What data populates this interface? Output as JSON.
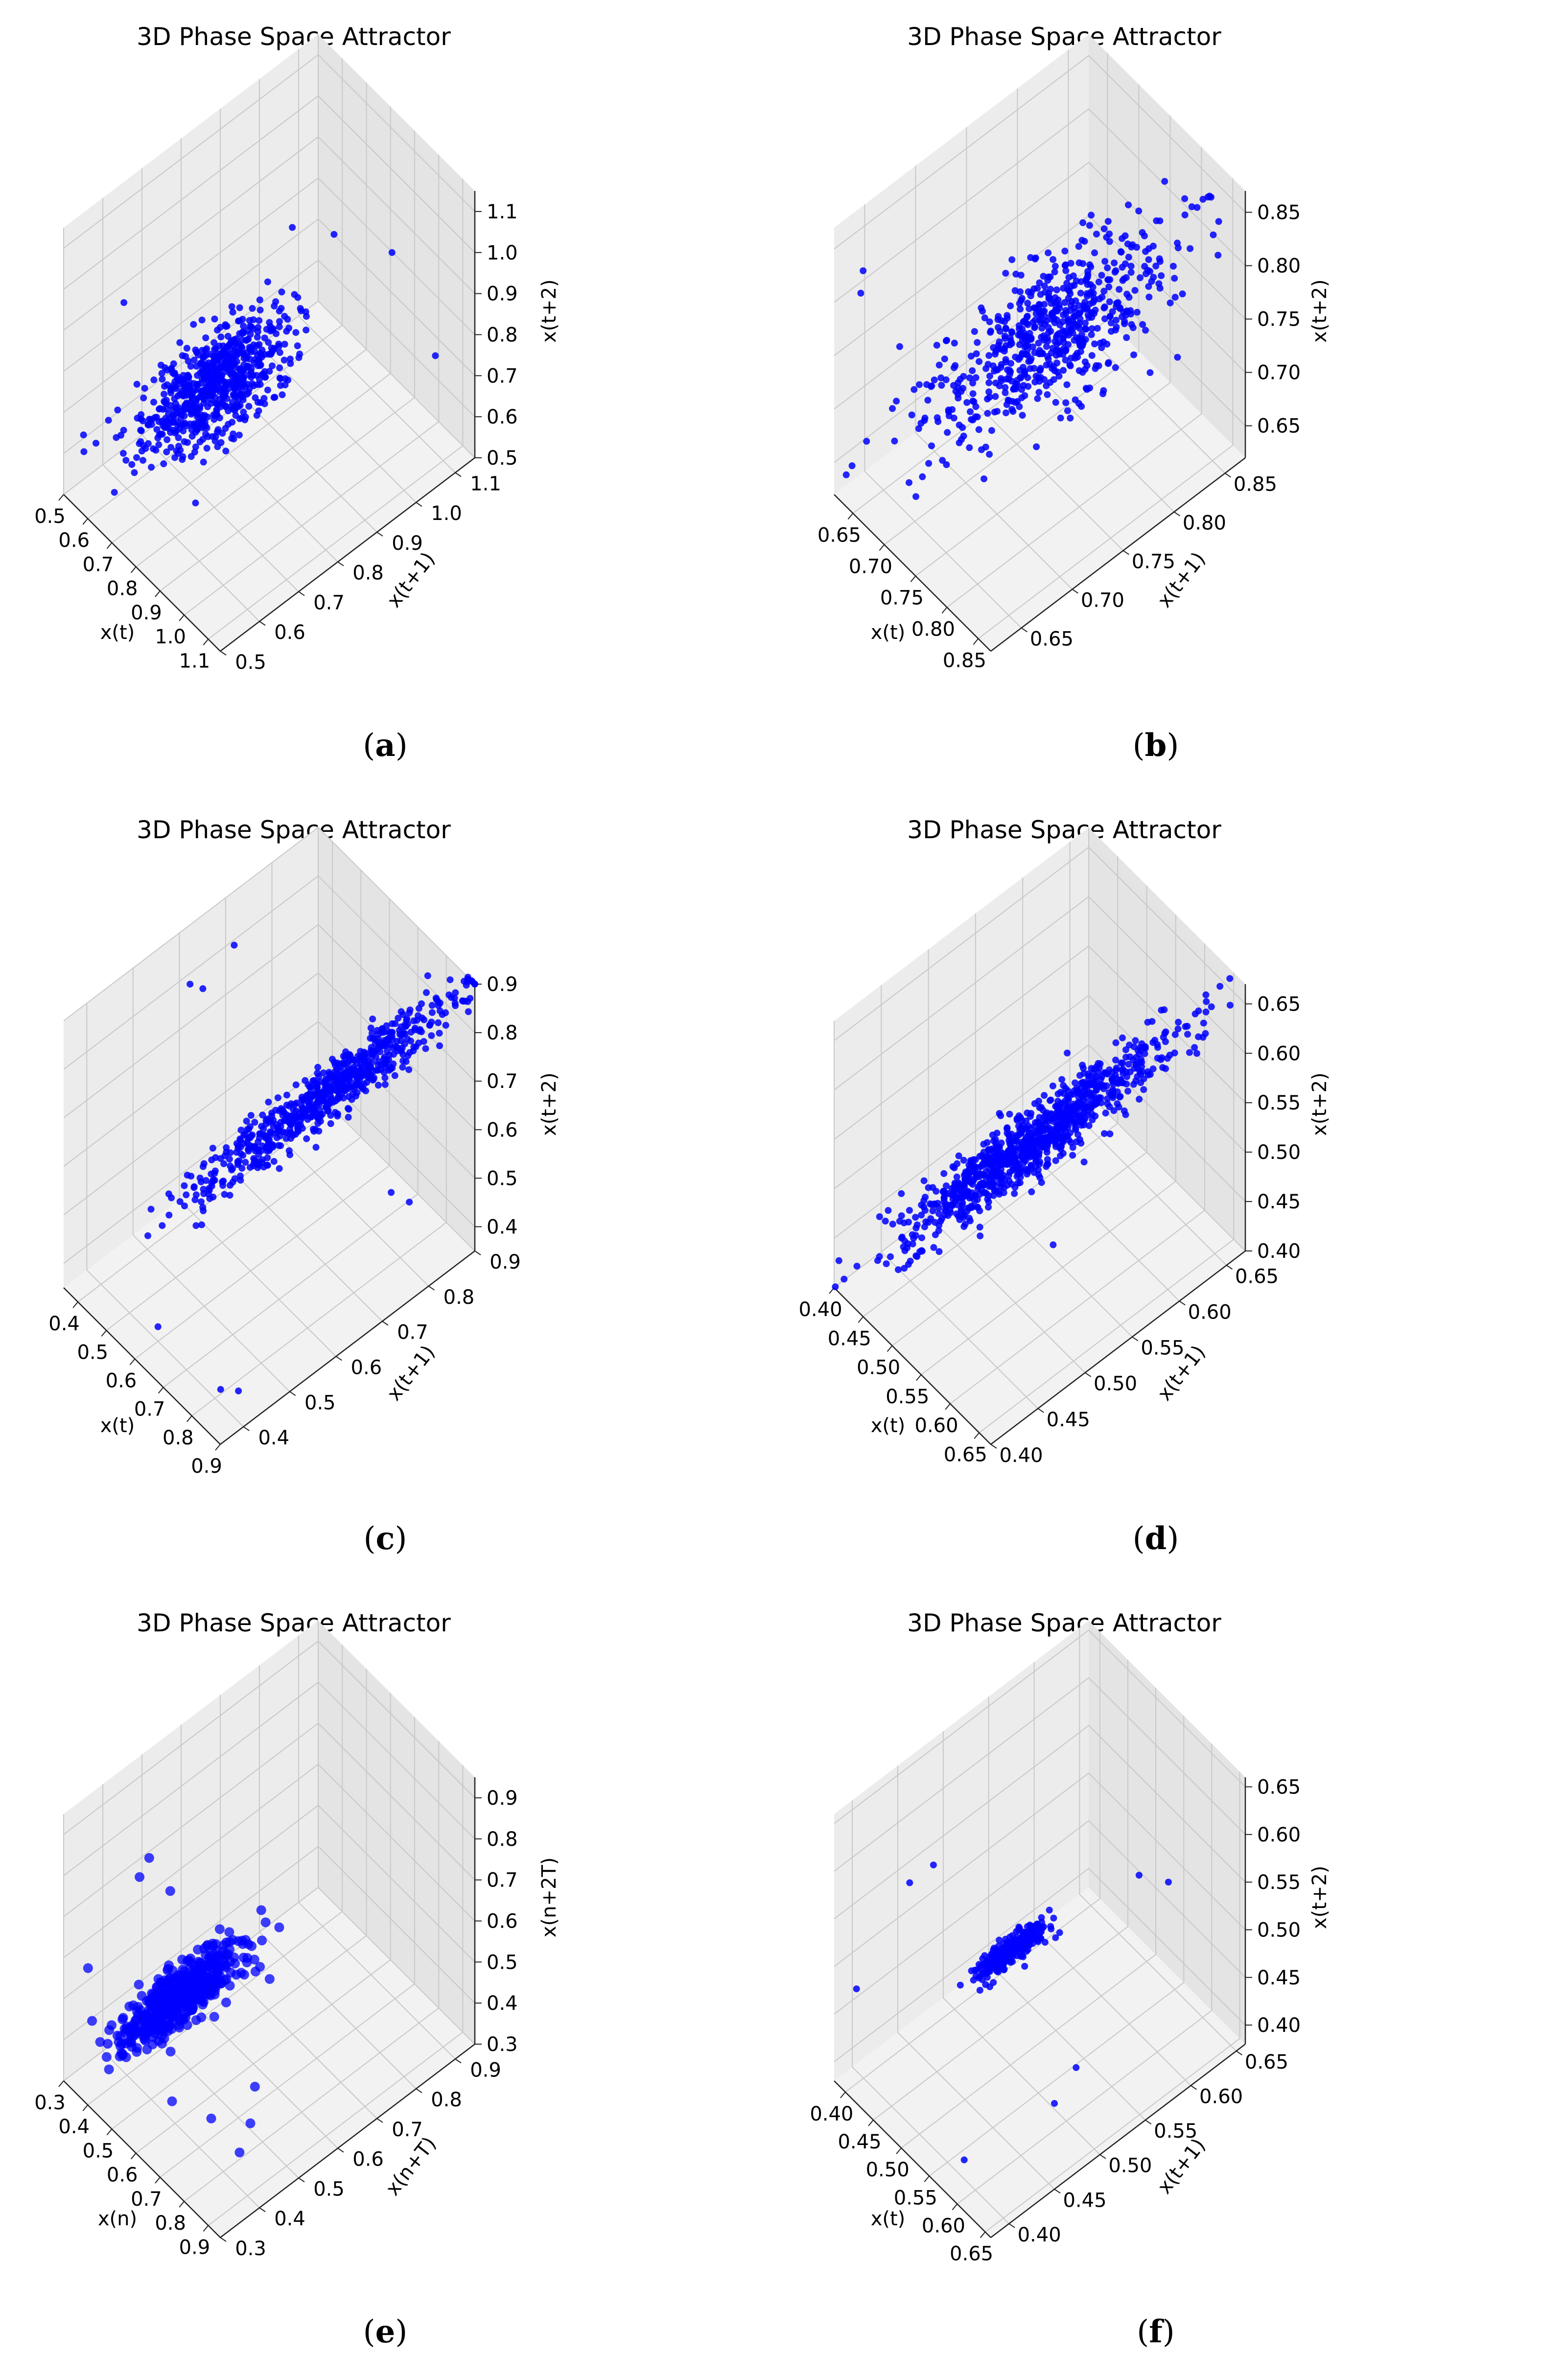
{
  "figure": {
    "caption_labels": [
      "a",
      "b",
      "c",
      "d",
      "e",
      "f"
    ]
  },
  "colors": {
    "points": "#0000ff",
    "pane_left": "#ececec",
    "pane_right": "#e4e4e4",
    "pane_floor": "#f2f2f2",
    "grid": "#c8c8c8"
  },
  "chart_data": [
    {
      "id": "a",
      "type": "scatter3d",
      "title": "3D Phase Space Attractor",
      "xlabel": "x(t)",
      "ylabel": "x(t+1)",
      "zlabel": "x(t+2)",
      "xlim": [
        0.5,
        1.15
      ],
      "ylim": [
        0.5,
        1.15
      ],
      "zlim": [
        0.5,
        1.15
      ],
      "xticks": [
        "0.5",
        "0.6",
        "0.7",
        "0.8",
        "0.9",
        "1.0",
        "1.1"
      ],
      "yticks": [
        "0.5",
        "0.6",
        "0.7",
        "0.8",
        "0.9",
        "1.0",
        "1.1"
      ],
      "zticks": [
        "0.5",
        "0.6",
        "0.7",
        "0.8",
        "0.9",
        "1.0",
        "1.1"
      ],
      "n_points": 700,
      "center": [
        0.74,
        0.74,
        0.74
      ],
      "spread": 0.07,
      "correlation": 0.75,
      "outliers": [
        [
          1.1,
          1.08,
          0.77
        ],
        [
          1.05,
          1.0,
          1.05
        ],
        [
          0.88,
          0.85,
          1.12
        ],
        [
          0.62,
          0.58,
          0.98
        ],
        [
          0.55,
          0.52,
          0.66
        ]
      ]
    },
    {
      "id": "b",
      "type": "scatter3d",
      "title": "3D Phase Space Attractor",
      "xlabel": "x(t)",
      "ylabel": "x(t+1)",
      "zlabel": "x(t+2)",
      "xlim": [
        0.62,
        0.87
      ],
      "ylim": [
        0.62,
        0.87
      ],
      "zlim": [
        0.62,
        0.87
      ],
      "xticks": [
        "0.65",
        "0.70",
        "0.75",
        "0.80",
        "0.85"
      ],
      "yticks": [
        "0.65",
        "0.70",
        "0.75",
        "0.80",
        "0.85"
      ],
      "zticks": [
        "0.65",
        "0.70",
        "0.75",
        "0.80",
        "0.85"
      ],
      "n_points": 650,
      "center": [
        0.75,
        0.75,
        0.75
      ],
      "spread": 0.04,
      "correlation": 0.8,
      "outliers": [
        [
          0.86,
          0.85,
          0.85
        ],
        [
          0.65,
          0.63,
          0.84
        ],
        [
          0.63,
          0.64,
          0.8
        ]
      ]
    },
    {
      "id": "c",
      "type": "scatter3d",
      "title": "3D Phase Space Attractor",
      "xlabel": "x(t)",
      "ylabel": "x(t+1)",
      "zlabel": "x(t+2)",
      "xlim": [
        0.35,
        0.9
      ],
      "ylim": [
        0.35,
        0.9
      ],
      "zlim": [
        0.35,
        0.9
      ],
      "xticks": [
        "0.4",
        "0.5",
        "0.6",
        "0.7",
        "0.8",
        "0.9"
      ],
      "yticks": [
        "0.4",
        "0.5",
        "0.6",
        "0.7",
        "0.8",
        "0.9"
      ],
      "zticks": [
        "0.4",
        "0.5",
        "0.6",
        "0.7",
        "0.8",
        "0.9"
      ],
      "n_points": 700,
      "center": [
        0.7,
        0.7,
        0.7
      ],
      "spread": 0.09,
      "correlation": 0.97,
      "outliers": [
        [
          0.82,
          0.4,
          0.38
        ],
        [
          0.85,
          0.42,
          0.38
        ],
        [
          0.6,
          0.4,
          0.38
        ],
        [
          0.4,
          0.62,
          0.8
        ],
        [
          0.42,
          0.58,
          0.85
        ],
        [
          0.38,
          0.7,
          0.82
        ],
        [
          0.8,
          0.82,
          0.45
        ],
        [
          0.85,
          0.75,
          0.55
        ]
      ]
    },
    {
      "id": "d",
      "type": "scatter3d",
      "title": "3D Phase Space Attractor",
      "xlabel": "x(t)",
      "ylabel": "x(t+1)",
      "zlabel": "x(t+2)",
      "xlim": [
        0.4,
        0.67
      ],
      "ylim": [
        0.4,
        0.67
      ],
      "zlim": [
        0.4,
        0.67
      ],
      "xticks": [
        "0.40",
        "0.45",
        "0.50",
        "0.55",
        "0.60",
        "0.65"
      ],
      "yticks": [
        "0.40",
        "0.45",
        "0.50",
        "0.55",
        "0.60",
        "0.65"
      ],
      "zticks": [
        "0.40",
        "0.45",
        "0.50",
        "0.55",
        "0.60",
        "0.65"
      ],
      "n_points": 950,
      "center": [
        0.53,
        0.53,
        0.53
      ],
      "spread": 0.045,
      "correlation": 0.96,
      "outliers": [
        [
          0.66,
          0.66,
          0.65
        ],
        [
          0.65,
          0.64,
          0.63
        ],
        [
          0.62,
          0.6,
          0.6
        ],
        [
          0.45,
          0.45,
          0.42
        ],
        [
          0.55,
          0.54,
          0.43
        ]
      ]
    },
    {
      "id": "e",
      "type": "scatter3d",
      "title": "3D Phase Space Attractor",
      "xlabel": "x(n)",
      "ylabel": "x(n+T)",
      "zlabel": "x(n+2T)",
      "xlim": [
        0.3,
        0.95
      ],
      "ylim": [
        0.3,
        0.95
      ],
      "zlim": [
        0.3,
        0.95
      ],
      "xticks": [
        "0.3",
        "0.4",
        "0.5",
        "0.6",
        "0.7",
        "0.8",
        "0.9"
      ],
      "yticks": [
        "0.3",
        "0.4",
        "0.5",
        "0.6",
        "0.7",
        "0.8",
        "0.9"
      ],
      "zticks": [
        "0.3",
        "0.4",
        "0.5",
        "0.6",
        "0.7",
        "0.8",
        "0.9"
      ],
      "n_points": 500,
      "center": [
        0.48,
        0.48,
        0.48
      ],
      "spread": 0.05,
      "correlation": 0.85,
      "outliers": [
        [
          0.46,
          0.42,
          0.85
        ],
        [
          0.42,
          0.42,
          0.78
        ],
        [
          0.45,
          0.48,
          0.72
        ],
        [
          0.6,
          0.62,
          0.66
        ],
        [
          0.7,
          0.58,
          0.58
        ],
        [
          0.85,
          0.45,
          0.5
        ],
        [
          0.88,
          0.42,
          0.45
        ],
        [
          0.9,
          0.38,
          0.42
        ],
        [
          0.75,
          0.4,
          0.4
        ],
        [
          0.62,
          0.38,
          0.38
        ],
        [
          0.32,
          0.35,
          0.55
        ],
        [
          0.5,
          0.45,
          0.38
        ]
      ]
    },
    {
      "id": "f",
      "type": "scatter3d",
      "title": "3D Phase Space Attractor",
      "xlabel": "x(t)",
      "ylabel": "x(t+1)",
      "zlabel": "x(t+2)",
      "xlim": [
        0.38,
        0.66
      ],
      "ylim": [
        0.38,
        0.66
      ],
      "zlim": [
        0.38,
        0.66
      ],
      "xticks": [
        "0.40",
        "0.45",
        "0.50",
        "0.55",
        "0.60",
        "0.65"
      ],
      "yticks": [
        "0.40",
        "0.45",
        "0.50",
        "0.55",
        "0.60",
        "0.65"
      ],
      "zticks": [
        "0.40",
        "0.45",
        "0.50",
        "0.55",
        "0.60",
        "0.65"
      ],
      "n_points": 300,
      "center": [
        0.5,
        0.5,
        0.5
      ],
      "spread": 0.012,
      "correlation": 0.9,
      "outliers": [
        [
          0.6,
          0.58,
          0.58
        ],
        [
          0.62,
          0.6,
          0.57
        ],
        [
          0.65,
          0.48,
          0.48
        ],
        [
          0.66,
          0.45,
          0.47
        ],
        [
          0.45,
          0.42,
          0.6
        ],
        [
          0.46,
          0.44,
          0.61
        ],
        [
          0.58,
          0.4,
          0.4
        ],
        [
          0.42,
          0.38,
          0.5
        ]
      ]
    }
  ]
}
